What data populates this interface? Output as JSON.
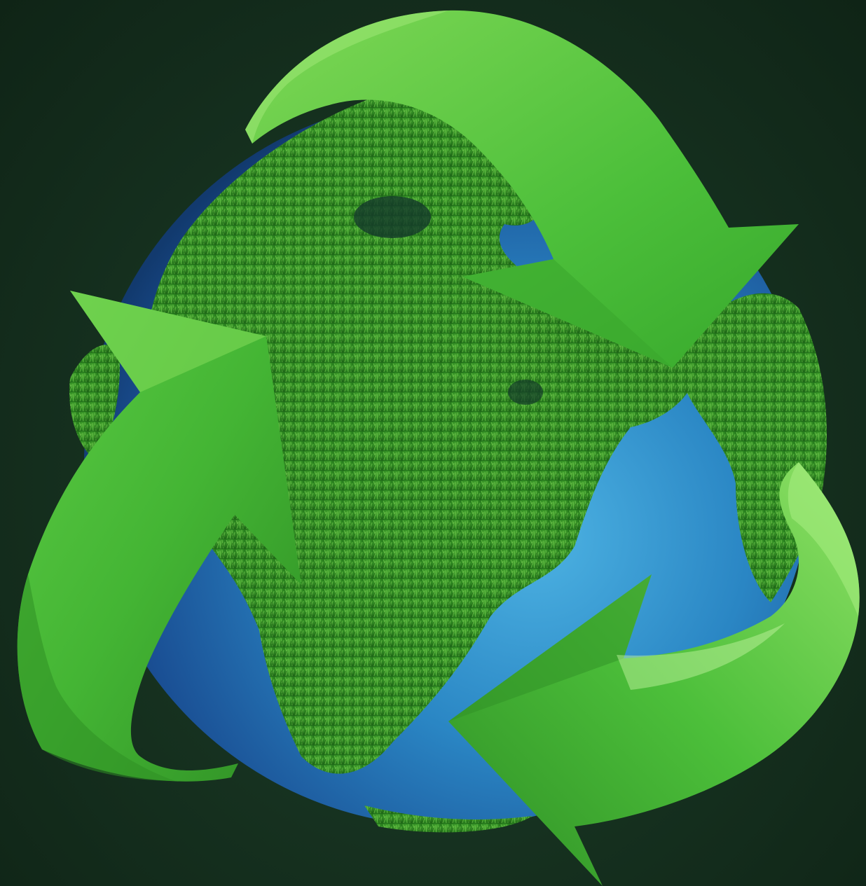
{
  "scene": {
    "subject": "globe-with-grass-continents-and-recycling-arrows",
    "colors": {
      "background": "#173321",
      "ocean": "#2a86c4",
      "ocean_dark": "#163f7a",
      "grass": "#3f9a2e",
      "grass_light": "#6cc24a",
      "arrow": "#4cbf3a",
      "arrow_light": "#7fd856",
      "arrow_dark": "#2f8f25"
    },
    "icons": [
      "globe-icon",
      "recycle-arrow-icon",
      "recycle-arrow-icon",
      "recycle-arrow-icon"
    ]
  }
}
